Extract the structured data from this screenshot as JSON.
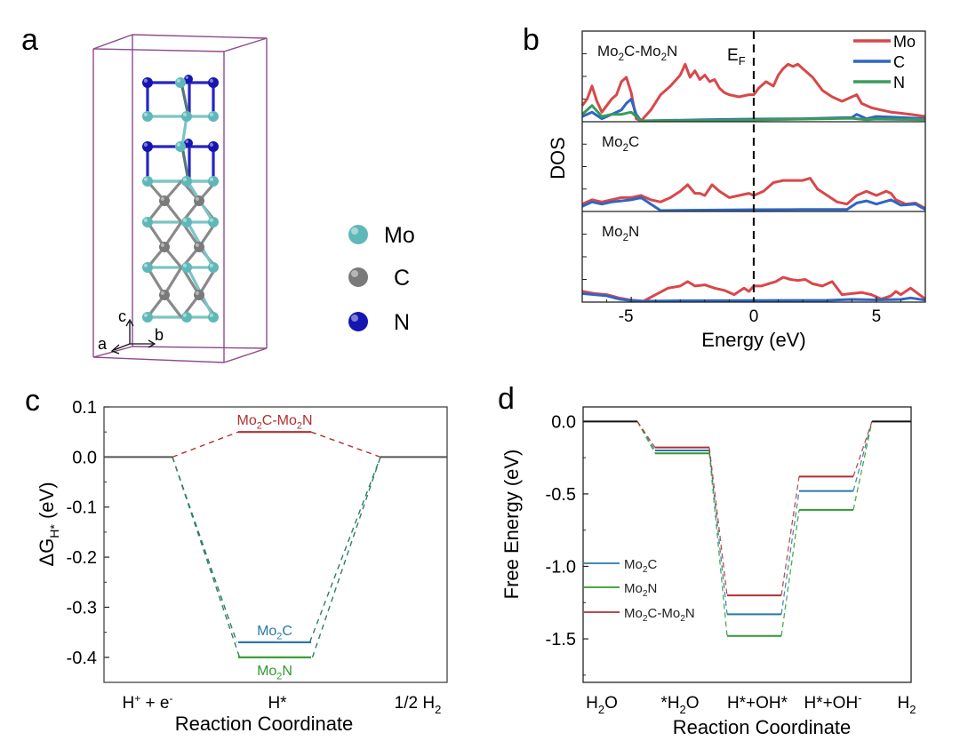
{
  "figure": {
    "panel_labels": [
      "a",
      "b",
      "c",
      "d"
    ]
  },
  "structure_panel": {
    "axes_labels": {
      "a": "a",
      "b": "b",
      "c": "c"
    },
    "legend": [
      {
        "element": "Mo",
        "color": "#5fb8b8"
      },
      {
        "element": "C",
        "color": "#7a7a7a"
      },
      {
        "element": "N",
        "color": "#1515b0"
      }
    ],
    "cell_color": "#8e4a8e",
    "bond_colors": {
      "Mo": "#7cc4c4",
      "C": "#8a8a8a",
      "N": "#2424c8"
    }
  },
  "colors": {
    "Mo2C-Mo2N": "#b03030",
    "Mo2C": "#2a78a8",
    "Mo2N": "#2f9a2f",
    "reference": "#333333",
    "dos_Mo": "#d9474a",
    "dos_C": "#2e66c4",
    "dos_N": "#3a9a5c"
  },
  "chart_data": [
    {
      "panel": "b",
      "type": "line",
      "title": "",
      "xlabel": "Energy  (eV)",
      "ylabel": "DOS",
      "xlim": [
        -7,
        7
      ],
      "xticks": [
        -5,
        0,
        5
      ],
      "fermi_label": "E",
      "fermi_sub": "F",
      "fermi_energy": 0,
      "legend": [
        "Mo",
        "C",
        "N"
      ],
      "legend_position": "top-right",
      "subplots": [
        {
          "name": "Mo2C-Mo2N",
          "label_main": "Mo",
          "label_sub1": "2",
          "label_mid": "C-Mo",
          "label_sub2": "2",
          "label_end": "N",
          "ylim": [
            0,
            4
          ],
          "series": [
            {
              "name": "Mo",
              "x": [
                -7,
                -6.8,
                -6.6,
                -6.4,
                -6.2,
                -6.0,
                -5.8,
                -5.6,
                -5.4,
                -5.2,
                -5.0,
                -4.8,
                -4.6,
                -4.2,
                -3.8,
                -3.4,
                -3.0,
                -2.8,
                -2.6,
                -2.4,
                -2.2,
                -2.0,
                -1.8,
                -1.6,
                -1.4,
                -1.2,
                -1.0,
                -0.6,
                -0.2,
                0,
                0.2,
                0.5,
                0.8,
                1.0,
                1.2,
                1.4,
                1.6,
                1.8,
                2.0,
                2.4,
                2.8,
                3.2,
                3.6,
                4.0,
                4.2,
                4.4,
                4.8,
                5.2,
                5.6,
                6.0,
                6.4,
                7.0
              ],
              "y": [
                0.7,
                1.0,
                1.6,
                0.9,
                0.4,
                0.7,
                1.0,
                1.2,
                1.8,
                2.0,
                1.3,
                0.1,
                0.0,
                0.5,
                1.2,
                1.6,
                2.1,
                2.6,
                2.0,
                2.3,
                1.9,
                2.1,
                1.8,
                1.9,
                1.5,
                1.3,
                1.2,
                1.1,
                1.2,
                1.2,
                1.5,
                1.8,
                1.6,
                2.1,
                2.4,
                2.6,
                2.5,
                2.6,
                2.4,
                2.0,
                1.4,
                1.1,
                0.9,
                1.1,
                1.2,
                0.8,
                0.6,
                0.5,
                0.4,
                0.35,
                0.3,
                0.2
              ]
            },
            {
              "name": "C",
              "x": [
                -7,
                -6.6,
                -6.2,
                -5.8,
                -5.4,
                -5.2,
                -5.0,
                -4.8,
                -4.6,
                -2,
                0,
                2,
                4,
                4.2,
                4.6,
                5.0,
                6.0,
                7.0
              ],
              "y": [
                0.2,
                0.4,
                0.1,
                0.3,
                0.5,
                0.8,
                1.0,
                0.3,
                0.0,
                0.05,
                0.08,
                0.1,
                0.15,
                0.3,
                0.1,
                0.2,
                0.15,
                0.1
              ]
            },
            {
              "name": "N",
              "x": [
                -7,
                -6.6,
                -6.2,
                -5.8,
                -5.4,
                -5.0,
                -4.8,
                -4.6,
                -2,
                0,
                2,
                4,
                4.6,
                5.0,
                7.0
              ],
              "y": [
                0.3,
                0.7,
                0.2,
                0.3,
                0.3,
                0.4,
                0.2,
                0.0,
                0.02,
                0.04,
                0.08,
                0.12,
                0.05,
                0.08,
                0.05
              ]
            }
          ]
        },
        {
          "name": "Mo2C",
          "label_main": "Mo",
          "label_sub1": "2",
          "label_mid": "C",
          "label_sub2": "",
          "label_end": "",
          "ylim": [
            0,
            4
          ],
          "series": [
            {
              "name": "Mo",
              "x": [
                -7,
                -6.6,
                -6.2,
                -5.8,
                -5.4,
                -5.0,
                -4.6,
                -4.2,
                -3.8,
                -3.4,
                -3.0,
                -2.7,
                -2.4,
                -2.2,
                -2.0,
                -1.7,
                -1.4,
                -1.0,
                -0.6,
                -0.2,
                0,
                0.4,
                0.8,
                1.2,
                1.6,
                2.0,
                2.3,
                2.6,
                3.0,
                3.4,
                3.8,
                4.2,
                4.6,
                5.0,
                5.4,
                5.6,
                5.8,
                6.2,
                6.6,
                7.0
              ],
              "y": [
                0.3,
                0.5,
                0.4,
                0.5,
                0.6,
                0.6,
                0.7,
                0.5,
                0.4,
                0.6,
                0.9,
                1.2,
                0.8,
                0.8,
                0.7,
                1.2,
                0.9,
                0.6,
                0.7,
                0.8,
                0.7,
                0.9,
                1.3,
                1.4,
                1.4,
                1.4,
                1.5,
                1.0,
                0.7,
                0.4,
                0.3,
                0.7,
                0.9,
                0.7,
                0.9,
                0.8,
                0.5,
                0.3,
                0.35,
                0.1
              ]
            },
            {
              "name": "C",
              "x": [
                -7,
                -6.6,
                -6.2,
                -5.8,
                -5.4,
                -5.0,
                -4.6,
                -4.2,
                -3.8,
                -2,
                0,
                2,
                3.8,
                4.2,
                4.6,
                5.0,
                5.6,
                6.0,
                6.6,
                7.0
              ],
              "y": [
                0.2,
                0.4,
                0.3,
                0.4,
                0.45,
                0.5,
                0.6,
                0.3,
                0.0,
                0.02,
                0.04,
                0.05,
                0.05,
                0.35,
                0.45,
                0.3,
                0.5,
                0.25,
                0.3,
                0.05
              ]
            }
          ]
        },
        {
          "name": "Mo2N",
          "label_main": "Mo",
          "label_sub1": "2",
          "label_mid": "N",
          "label_sub2": "",
          "label_end": "",
          "ylim": [
            0,
            4
          ],
          "series": [
            {
              "name": "Mo",
              "x": [
                -7,
                -6.5,
                -6,
                -5.5,
                -5,
                -4.5,
                -4.0,
                -3.5,
                -3.0,
                -2.7,
                -2.4,
                -2.0,
                -1.6,
                -1.2,
                -0.8,
                -0.4,
                -0.2,
                0,
                0.3,
                0.6,
                0.9,
                1.2,
                1.5,
                1.8,
                2.1,
                2.4,
                2.8,
                3.2,
                3.6,
                4.0,
                4.4,
                4.8,
                5.2,
                5.6,
                5.8,
                6.0,
                6.4,
                7.0
              ],
              "y": [
                0.45,
                0.35,
                0.3,
                0.15,
                0.05,
                0.0,
                0.3,
                0.6,
                0.7,
                0.9,
                0.7,
                0.75,
                0.6,
                0.5,
                0.3,
                0.6,
                0.45,
                0.7,
                0.7,
                0.8,
                0.9,
                1.1,
                1.0,
                0.95,
                1.0,
                0.8,
                0.7,
                0.9,
                0.3,
                0.35,
                0.4,
                0.3,
                0.1,
                0.25,
                0.45,
                0.3,
                0.6,
                0.1
              ]
            },
            {
              "name": "C",
              "x": [
                -7,
                -6.5,
                -6,
                -5.5,
                -5,
                -4.5,
                -3,
                0,
                3,
                4,
                5,
                6,
                6.4,
                7.0
              ],
              "y": [
                0.35,
                0.3,
                0.25,
                0.1,
                0.03,
                0.0,
                0.02,
                0.03,
                0.04,
                0.08,
                0.06,
                0.08,
                0.15,
                0.05
              ]
            }
          ]
        }
      ]
    },
    {
      "panel": "c",
      "type": "line",
      "title": "",
      "xlabel": "Reaction Coordinate",
      "ylabel_main": "ΔG",
      "ylabel_sub": "H*",
      "ylabel_tail": " (eV)",
      "ylim": [
        -0.45,
        0.1
      ],
      "yticks": [
        0.1,
        0.0,
        -0.1,
        -0.2,
        -0.3,
        -0.4
      ],
      "ytick_labels": [
        "0.1",
        "0.0",
        "-0.1",
        "-0.2",
        "-0.3",
        "-0.4"
      ],
      "categories": [
        {
          "main": "H",
          "sup": "+",
          "rest": " + e",
          "sup2": "-"
        },
        {
          "main": "H*",
          "sup": "",
          "rest": "",
          "sup2": ""
        },
        {
          "main": "1/2 H",
          "sub": "2"
        }
      ],
      "series": [
        {
          "name": "Mo2C-Mo2N",
          "values": [
            0.0,
            0.05,
            0.0
          ],
          "label_main": "Mo",
          "label_sub1": "2",
          "label_mid": "C-Mo",
          "label_sub2": "2",
          "label_end": "N",
          "label_position": "above"
        },
        {
          "name": "Mo2C",
          "values": [
            0.0,
            -0.37,
            0.0
          ],
          "label_main": "Mo",
          "label_sub1": "2",
          "label_mid": "C",
          "label_sub2": "",
          "label_end": "",
          "label_position": "above"
        },
        {
          "name": "Mo2N",
          "values": [
            0.0,
            -0.4,
            0.0
          ],
          "label_main": "Mo",
          "label_sub1": "2",
          "label_mid": "N",
          "label_sub2": "",
          "label_end": "",
          "label_position": "below"
        }
      ]
    },
    {
      "panel": "d",
      "type": "line",
      "title": "",
      "xlabel": "Reaction Coordinate",
      "ylabel": "Free Energy (eV)",
      "ylim": [
        -1.8,
        0.1
      ],
      "yticks": [
        0.0,
        -0.5,
        -1.0,
        -1.5
      ],
      "ytick_labels": [
        "0.0",
        "-0.5",
        "-1.0",
        "-1.5"
      ],
      "categories": [
        {
          "pre": "H",
          "sub": "2",
          "post": "O",
          "sup": ""
        },
        {
          "pre": "*H",
          "sub": "2",
          "post": "O",
          "sup": ""
        },
        {
          "pre": "H*+OH*",
          "sub": "",
          "post": "",
          "sup": ""
        },
        {
          "pre": "H*+OH",
          "sub": "",
          "post": "",
          "sup": "-"
        },
        {
          "pre": "H",
          "sub": "2",
          "post": "",
          "sup": ""
        }
      ],
      "legend_position": "middle-left",
      "series": [
        {
          "name": "Mo2C",
          "values": [
            0.0,
            -0.2,
            -1.33,
            -0.48,
            0.0
          ],
          "label_main": "Mo",
          "label_sub1": "2",
          "label_mid": "C",
          "label_sub2": "",
          "label_end": ""
        },
        {
          "name": "Mo2N",
          "values": [
            0.0,
            -0.22,
            -1.48,
            -0.61,
            0.0
          ],
          "label_main": "Mo",
          "label_sub1": "2",
          "label_mid": "N",
          "label_sub2": "",
          "label_end": ""
        },
        {
          "name": "Mo2C-Mo2N",
          "values": [
            0.0,
            -0.18,
            -1.2,
            -0.38,
            0.0
          ],
          "label_main": "Mo",
          "label_sub1": "2",
          "label_mid": "C-Mo",
          "label_sub2": "2",
          "label_end": "N"
        }
      ]
    }
  ]
}
